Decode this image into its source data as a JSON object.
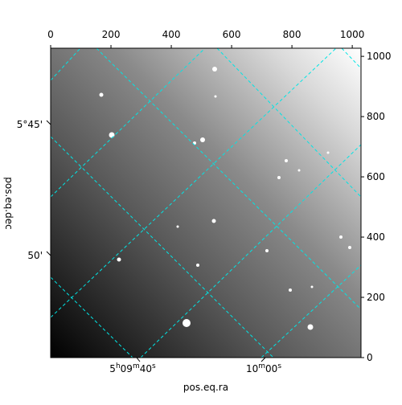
{
  "chart_data": {
    "type": "image",
    "xlabel": "pos.eq.ra",
    "ylabel": "pos.eq.dec",
    "xlim": [
      0,
      1029
    ],
    "xticks": [
      0,
      200,
      400,
      600,
      800,
      1000
    ],
    "ylim": [
      0,
      1027
    ],
    "yticks": [
      0,
      200,
      400,
      600,
      800,
      1000
    ],
    "ra_ticks": [
      [
        "5",
        "h",
        "09",
        "m",
        "40",
        "s"
      ],
      [
        "10",
        "m",
        "00",
        "s"
      ]
    ],
    "dec_ticks": [
      "5°45'",
      "50'"
    ],
    "grid": true,
    "grid_color": "#00e5e5"
  }
}
